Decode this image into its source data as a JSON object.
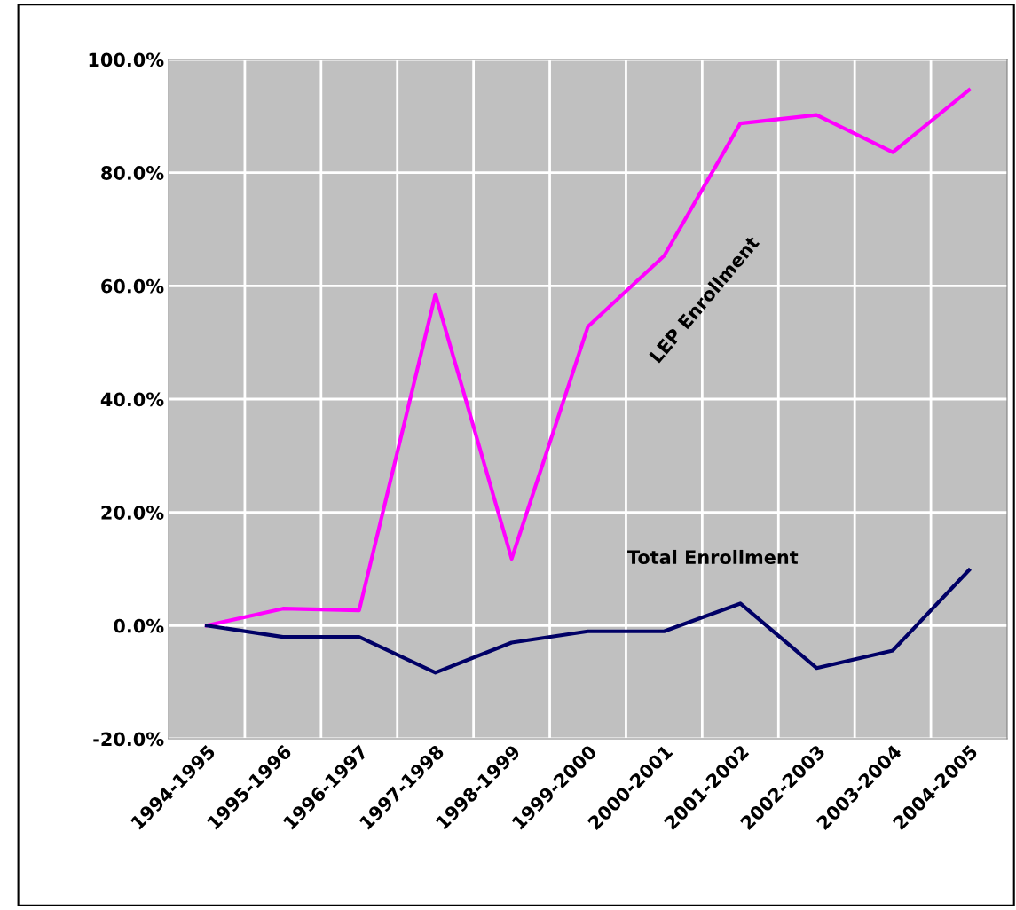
{
  "chart_data": {
    "type": "line",
    "categories": [
      "1994-1995",
      "1995-1996",
      "1996-1997",
      "1997-1998",
      "1998-1999",
      "1999-2000",
      "2000-2001",
      "2001-2002",
      "2002-2003",
      "2003-2004",
      "2004-2005"
    ],
    "series": [
      {
        "name": "LEP Enrollment",
        "color": "#ff00ff",
        "values": [
          0,
          3.0,
          2.7,
          58.5,
          11.8,
          52.8,
          65.3,
          88.7,
          90.2,
          83.6,
          94.6
        ]
      },
      {
        "name": "Total Enrollment",
        "color": "#000066",
        "values": [
          0,
          -2.0,
          -2.0,
          -8.3,
          -3.0,
          -1.0,
          -1.0,
          3.9,
          -7.5,
          -4.4,
          9.8
        ]
      }
    ],
    "ylim": [
      -20,
      100
    ],
    "yticks": [
      {
        "value": -20,
        "label": "-20.0%"
      },
      {
        "value": 0,
        "label": "0.0%"
      },
      {
        "value": 20,
        "label": "20.0%"
      },
      {
        "value": 40,
        "label": "40.0%"
      },
      {
        "value": 60,
        "label": "60.0%"
      },
      {
        "value": 80,
        "label": "80.0%"
      },
      {
        "value": 100,
        "label": "100.0%"
      }
    ],
    "grid": true,
    "legend": false,
    "marker": "none",
    "line_style": "solid"
  }
}
